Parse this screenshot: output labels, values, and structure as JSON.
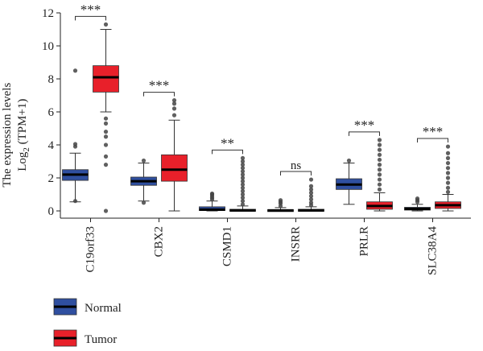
{
  "chart_data": {
    "type": "box",
    "ylabel_line1": "The expression levels",
    "ylabel_line2_prefix": "Log",
    "ylabel_line2_sub": "2",
    "ylabel_line2_suffix": " (TPM+1)",
    "ylim": [
      0,
      12
    ],
    "yticks": [
      "0",
      "2",
      "4",
      "6",
      "8",
      "10",
      "12"
    ],
    "ytick_values": [
      0,
      2,
      4,
      6,
      8,
      10,
      12
    ],
    "categories": [
      "C19orf33",
      "CBX2",
      "CSMD1",
      "INSRR",
      "PRLR",
      "SLC38A4"
    ],
    "significance": [
      "***",
      "***",
      "**",
      "ns",
      "***",
      "***"
    ],
    "legend": {
      "position": "bottom-left",
      "items": [
        {
          "label": "Normal",
          "color": "#2f4fa0"
        },
        {
          "label": "Tumor",
          "color": "#e8202a"
        }
      ]
    },
    "series": [
      {
        "name": "Normal",
        "color": "#2f4fa0",
        "boxes": [
          {
            "whislo": 0.55,
            "q1": 1.85,
            "med": 2.2,
            "q3": 2.5,
            "whishi": 3.5,
            "fliers": [
              0.6,
              3.9,
              4.05,
              8.5
            ]
          },
          {
            "whislo": 0.6,
            "q1": 1.55,
            "med": 1.8,
            "q3": 2.05,
            "whishi": 2.9,
            "fliers": [
              0.5,
              3.05
            ]
          },
          {
            "whislo": 0.0,
            "q1": 0.02,
            "med": 0.08,
            "q3": 0.25,
            "whishi": 0.6,
            "fliers": [
              0.7,
              0.8,
              0.9,
              1.0,
              1.05
            ]
          },
          {
            "whislo": 0.0,
            "q1": 0.0,
            "med": 0.03,
            "q3": 0.08,
            "whishi": 0.2,
            "fliers": [
              0.3,
              0.45,
              0.55,
              0.65
            ]
          },
          {
            "whislo": 0.4,
            "q1": 1.3,
            "med": 1.6,
            "q3": 1.95,
            "whishi": 2.9,
            "fliers": [
              3.05
            ]
          },
          {
            "whislo": 0.0,
            "q1": 0.05,
            "med": 0.12,
            "q3": 0.22,
            "whishi": 0.4,
            "fliers": [
              0.55,
              0.65,
              0.75
            ]
          }
        ]
      },
      {
        "name": "Tumor",
        "color": "#e8202a",
        "boxes": [
          {
            "whislo": 6.0,
            "q1": 7.2,
            "med": 8.1,
            "q3": 8.8,
            "whishi": 11.0,
            "fliers": [
              0.0,
              2.8,
              3.3,
              4.0,
              4.5,
              4.8,
              5.3,
              5.6,
              11.3
            ]
          },
          {
            "whislo": 0.0,
            "q1": 1.8,
            "med": 2.5,
            "q3": 3.4,
            "whishi": 5.5,
            "fliers": [
              5.8,
              6.2,
              6.5,
              6.7
            ]
          },
          {
            "whislo": 0.0,
            "q1": 0.0,
            "med": 0.03,
            "q3": 0.1,
            "whishi": 0.3,
            "fliers": [
              0.4,
              0.6,
              0.8,
              1.0,
              1.2,
              1.4,
              1.6,
              1.8,
              2.0,
              2.2,
              2.4,
              2.6,
              2.8,
              3.0,
              3.2
            ]
          },
          {
            "whislo": 0.0,
            "q1": 0.0,
            "med": 0.03,
            "q3": 0.1,
            "whishi": 0.25,
            "fliers": [
              0.35,
              0.5,
              0.7,
              0.9,
              1.1,
              1.3,
              1.5,
              1.9
            ]
          },
          {
            "whislo": 0.0,
            "q1": 0.1,
            "med": 0.3,
            "q3": 0.55,
            "whishi": 1.1,
            "fliers": [
              1.3,
              1.6,
              1.9,
              2.2,
              2.5,
              2.8,
              3.1,
              3.4,
              3.7,
              4.0,
              4.3
            ]
          },
          {
            "whislo": 0.0,
            "q1": 0.15,
            "med": 0.35,
            "q3": 0.55,
            "whishi": 1.0,
            "fliers": [
              1.15,
              1.4,
              1.7,
              2.0,
              2.3,
              2.6,
              2.9,
              3.2,
              3.5,
              3.9
            ]
          }
        ]
      }
    ]
  }
}
